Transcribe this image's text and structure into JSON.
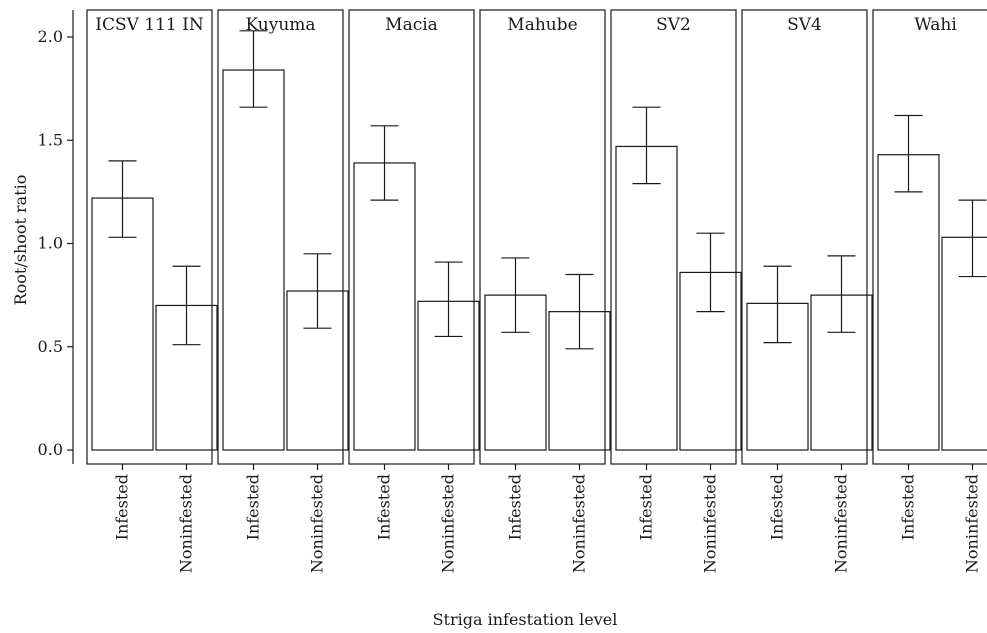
{
  "chart_data": {
    "type": "bar",
    "xlabel": "Striga infestation level",
    "ylabel": "Root/shoot ratio",
    "ylim": [
      0,
      2.0
    ],
    "y_ticks": [
      "0.0",
      "0.5",
      "1.0",
      "1.5",
      "2.0"
    ],
    "categories": [
      "Infested",
      "Noninfested"
    ],
    "panels": [
      {
        "name": "ICSV 111 IN",
        "values": [
          1.22,
          0.7
        ],
        "error_low": [
          1.03,
          0.51
        ],
        "error_high": [
          1.4,
          0.89
        ]
      },
      {
        "name": "Kuyuma",
        "values": [
          1.84,
          0.77
        ],
        "error_low": [
          1.66,
          0.59
        ],
        "error_high": [
          2.03,
          0.95
        ]
      },
      {
        "name": "Macia",
        "values": [
          1.39,
          0.72
        ],
        "error_low": [
          1.21,
          0.55
        ],
        "error_high": [
          1.57,
          0.91
        ]
      },
      {
        "name": "Mahube",
        "values": [
          0.75,
          0.67
        ],
        "error_low": [
          0.57,
          0.49
        ],
        "error_high": [
          0.93,
          0.85
        ]
      },
      {
        "name": "SV2",
        "values": [
          1.47,
          0.86
        ],
        "error_low": [
          1.29,
          0.67
        ],
        "error_high": [
          1.66,
          1.05
        ]
      },
      {
        "name": "SV4",
        "values": [
          0.71,
          0.75
        ],
        "error_low": [
          0.52,
          0.57
        ],
        "error_high": [
          0.89,
          0.94
        ]
      },
      {
        "name": "Wahi",
        "values": [
          1.43,
          1.03
        ],
        "error_low": [
          1.25,
          0.84
        ],
        "error_high": [
          1.62,
          1.21
        ]
      }
    ],
    "grid": false,
    "legend": "none",
    "colors": {
      "bar_fill": "#ffffff",
      "stroke": "#1a1a1a"
    }
  }
}
